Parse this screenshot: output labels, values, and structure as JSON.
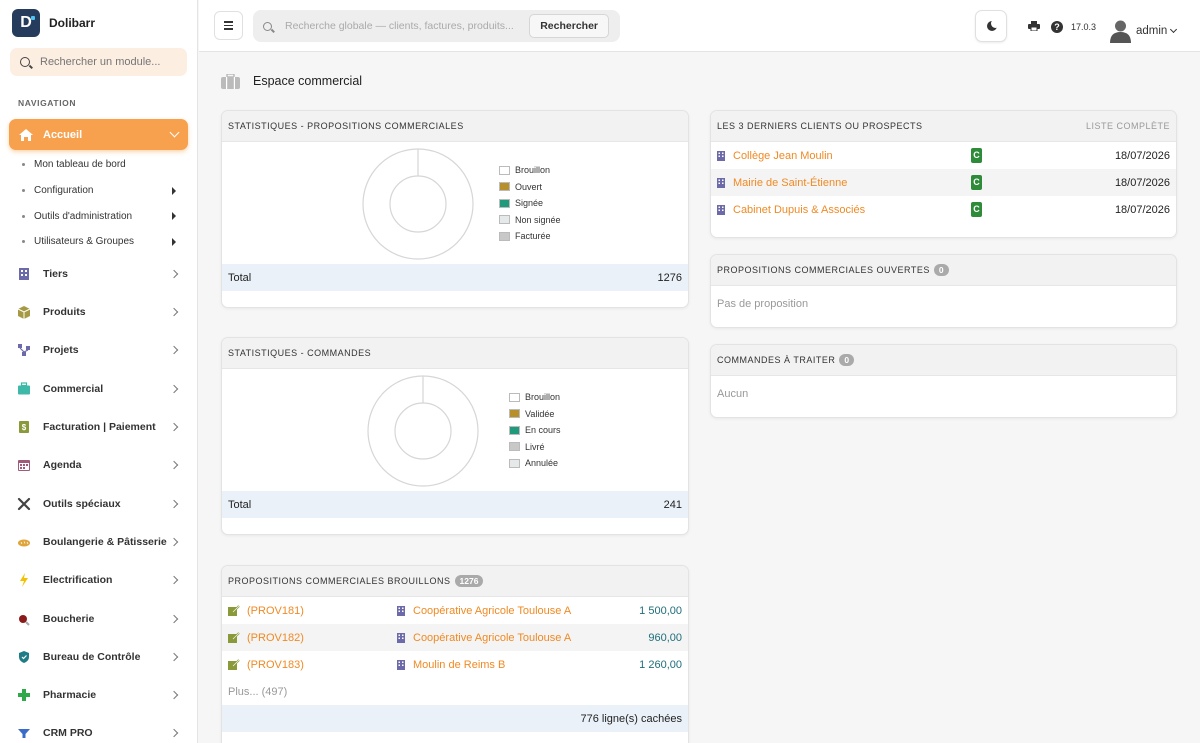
{
  "brand": {
    "name": "Dolibarr",
    "logo_letter": "D"
  },
  "module_search": {
    "placeholder": "Rechercher un module..."
  },
  "nav": {
    "title": "NAVIGATION",
    "active": {
      "label": "Accueil",
      "icon": "home-icon"
    },
    "subitems": [
      {
        "label": "Mon tableau de bord",
        "has_arrow": false
      },
      {
        "label": "Configuration",
        "has_arrow": true
      },
      {
        "label": "Outils d'administration",
        "has_arrow": true
      },
      {
        "label": "Utilisateurs & Groupes",
        "has_arrow": true
      }
    ],
    "items": [
      {
        "label": "Tiers",
        "icon": "building-icon",
        "color": "#6c6aa8"
      },
      {
        "label": "Produits",
        "icon": "box-icon",
        "color": "#a69944"
      },
      {
        "label": "Projets",
        "icon": "project-icon",
        "color": "#6c6aa8"
      },
      {
        "label": "Commercial",
        "icon": "briefcase-icon",
        "color": "#3eb8a7"
      },
      {
        "label": "Facturation | Paiement",
        "icon": "invoice-icon",
        "color": "#8a9a3b"
      },
      {
        "label": "Agenda",
        "icon": "calendar-icon",
        "color": "#a05a7a"
      },
      {
        "label": "Outils spéciaux",
        "icon": "tools-icon",
        "color": "#444444"
      },
      {
        "label": "Boulangerie & Pâtisserie",
        "icon": "bread-icon",
        "color": "#e0a43a"
      },
      {
        "label": "Electrification",
        "icon": "bolt-icon",
        "color": "#f2c200"
      },
      {
        "label": "Boucherie",
        "icon": "meat-icon",
        "color": "#8b1a1a"
      },
      {
        "label": "Bureau de Contrôle",
        "icon": "shield-icon",
        "color": "#1d7c86"
      },
      {
        "label": "Pharmacie",
        "icon": "cross-icon",
        "color": "#2eaa4a"
      },
      {
        "label": "CRM PRO",
        "icon": "funnel-icon",
        "color": "#3a6cc9"
      }
    ]
  },
  "topbar": {
    "search_placeholder": "Recherche globale — clients, factures, produits...",
    "search_button": "Rechercher",
    "version": "17.0.3",
    "username": "admin"
  },
  "page": {
    "title": "Espace commercial"
  },
  "stats_proposals": {
    "title": "STATISTIQUES - PROPOSITIONS COMMERCIALES",
    "legend": [
      {
        "label": "Brouillon",
        "color": "#ffffff"
      },
      {
        "label": "Ouvert",
        "color": "#b8902a"
      },
      {
        "label": "Signée",
        "color": "#1f9a7a"
      },
      {
        "label": "Non signée",
        "color": "#e6e9ea"
      },
      {
        "label": "Facturée",
        "color": "#c8c8c8"
      }
    ],
    "total_label": "Total",
    "total_value": "1276"
  },
  "stats_orders": {
    "title": "STATISTIQUES - COMMANDES",
    "legend": [
      {
        "label": "Brouillon",
        "color": "#ffffff"
      },
      {
        "label": "Validée",
        "color": "#b8902a"
      },
      {
        "label": "En cours",
        "color": "#1f9a7a"
      },
      {
        "label": "Livré",
        "color": "#c8c8c8"
      },
      {
        "label": "Annulée",
        "color": "#e6e9ea"
      }
    ],
    "total_label": "Total",
    "total_value": "241"
  },
  "draft_proposals": {
    "title": "PROPOSITIONS COMMERCIALES BROUILLONS",
    "count": "1276",
    "rows": [
      {
        "ref": "(PROV181)",
        "client": "Coopérative Agricole Toulouse A",
        "amount": "1 500,00"
      },
      {
        "ref": "(PROV182)",
        "client": "Coopérative Agricole Toulouse A",
        "amount": "960,00"
      },
      {
        "ref": "(PROV183)",
        "client": "Moulin de Reims B",
        "amount": "1 260,00"
      }
    ],
    "more": "Plus... (497)",
    "hidden": "776 ligne(s) cachées"
  },
  "last_clients": {
    "title": "LES 3 DERNIERS CLIENTS OU PROSPECTS",
    "link": "LISTE COMPLÈTE",
    "rows": [
      {
        "name": "Collège Jean Moulin",
        "type": "C",
        "date": "18/07/2026"
      },
      {
        "name": "Mairie de Saint-Étienne",
        "type": "C",
        "date": "18/07/2026"
      },
      {
        "name": "Cabinet Dupuis & Associés",
        "type": "C",
        "date": "18/07/2026"
      }
    ]
  },
  "open_proposals": {
    "title": "PROPOSITIONS COMMERCIALES OUVERTES",
    "count": "0",
    "empty": "Pas de proposition"
  },
  "orders_to_process": {
    "title": "COMMANDES À TRAITER",
    "count": "0",
    "empty": "Aucun"
  }
}
